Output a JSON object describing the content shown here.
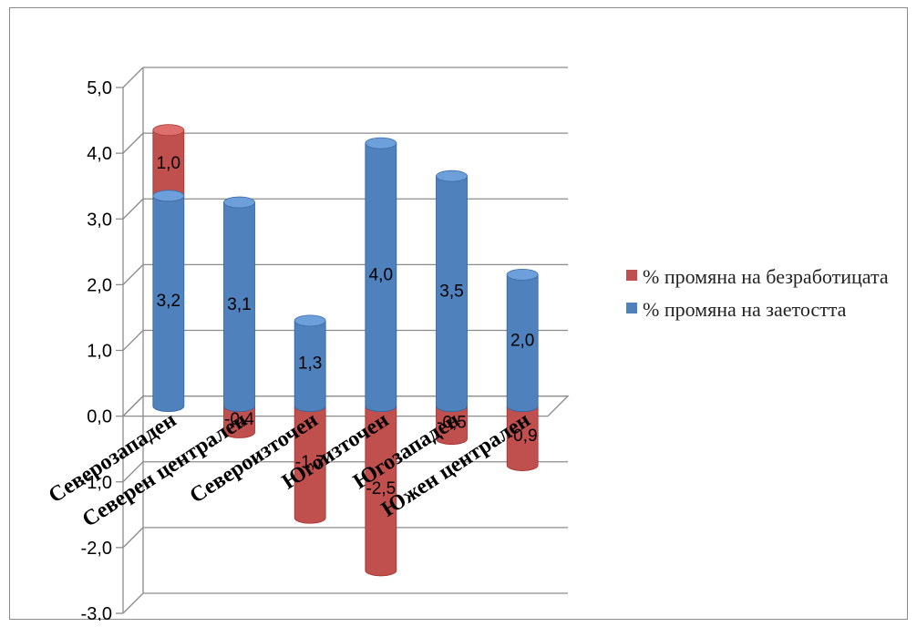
{
  "chart_data": {
    "type": "bar",
    "stacked": true,
    "style": "3d-cylinder",
    "categories": [
      "Северозападен",
      "Северен централен",
      "Североизточен",
      "Югоизточен",
      "Югозападен",
      "Южен централен"
    ],
    "series": [
      {
        "name": "% промяна на заетостта",
        "color": "#4f81bd",
        "values": [
          3.2,
          3.1,
          1.3,
          4.0,
          3.5,
          2.0
        ],
        "labels": [
          "3,2",
          "3,1",
          "1,3",
          "4,0",
          "3,5",
          "2,0"
        ]
      },
      {
        "name": "% промяна на безработицата",
        "color": "#c0504d",
        "values": [
          1.0,
          -0.4,
          -1.7,
          -2.5,
          -0.5,
          -0.9
        ],
        "labels": [
          "1,0",
          "-0,4",
          "-1,7",
          "-2,5",
          "-0,5",
          "-0,9"
        ]
      }
    ],
    "yticks": [
      "5,0",
      "4,0",
      "3,0",
      "2,0",
      "1,0",
      "0,0",
      "-1,0",
      "-2,0",
      "-3,0"
    ],
    "ylim": [
      -3,
      5
    ],
    "grid": true,
    "legend_position": "right"
  },
  "legend": {
    "items": [
      {
        "label": "% промяна на безработицата",
        "color": "#c0504d"
      },
      {
        "label": "% промяна на заетостта",
        "color": "#4f81bd"
      }
    ]
  }
}
